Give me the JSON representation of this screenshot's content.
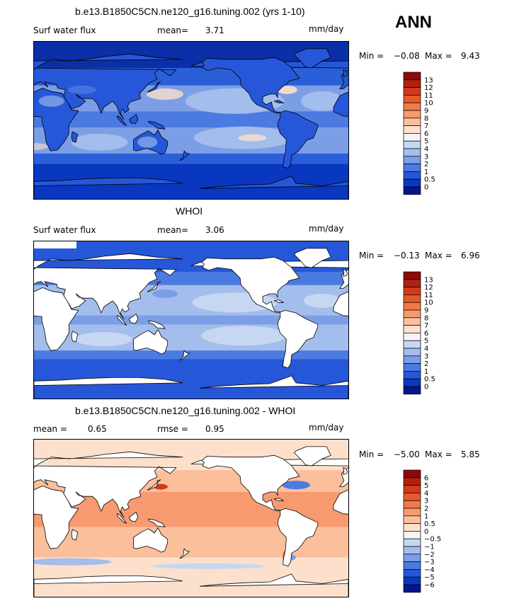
{
  "season": "ANN",
  "panels": [
    {
      "title": "b.e13.B1850C5CN.ne120_g16.tuning.002 (yrs 1-10)",
      "left_label": "Surf water flux",
      "stat1_label": "mean=",
      "stat1_value": "3.71",
      "units": "mm/day",
      "min_label": "Min =",
      "min_value": "−0.08",
      "max_label": "Max =",
      "max_value": "9.43",
      "colorbar": {
        "labels": [
          "13",
          "12",
          "11",
          "10",
          "9",
          "8",
          "7",
          "6",
          "5",
          "4",
          "3",
          "2",
          "1",
          "0.5",
          "0"
        ],
        "colors": [
          "#8c0a0a",
          "#b3200f",
          "#d23a1a",
          "#e65a2a",
          "#f27a48",
          "#f89a70",
          "#fbbf9c",
          "#fde0cc",
          "#f5f5f5",
          "#c6d7f2",
          "#a3bdec",
          "#7b9ee6",
          "#4b7ae0",
          "#2657d8",
          "#0a37c0",
          "#05158a"
        ]
      },
      "mode": "model"
    },
    {
      "title": "WHOI",
      "left_label": "Surf water flux",
      "stat1_label": "mean=",
      "stat1_value": "3.06",
      "units": "mm/day",
      "min_label": "Min =",
      "min_value": "−0.13",
      "max_label": "Max =",
      "max_value": "6.96",
      "colorbar": {
        "labels": [
          "13",
          "12",
          "11",
          "10",
          "9",
          "8",
          "7",
          "6",
          "5",
          "4",
          "3",
          "2",
          "1",
          "0.5",
          "0"
        ],
        "colors": [
          "#8c0a0a",
          "#b3200f",
          "#d23a1a",
          "#e65a2a",
          "#f27a48",
          "#f89a70",
          "#fbbf9c",
          "#fde0cc",
          "#f5f5f5",
          "#c6d7f2",
          "#a3bdec",
          "#7b9ee6",
          "#4b7ae0",
          "#2657d8",
          "#0a37c0",
          "#05158a"
        ]
      },
      "mode": "obs"
    },
    {
      "title": "b.e13.B1850C5CN.ne120_g16.tuning.002 - WHOI",
      "left_label": "mean =",
      "left_value": "0.65",
      "stat1_label": "rmse =",
      "stat1_value": "0.95",
      "units": "mm/day",
      "min_label": "Min =",
      "min_value": "−5.00",
      "max_label": "Max =",
      "max_value": "5.85",
      "colorbar": {
        "labels": [
          "6",
          "5",
          "4",
          "3",
          "2",
          "1",
          "0.5",
          "0",
          "−0.5",
          "−1",
          "−2",
          "−3",
          "−4",
          "−5",
          "−6"
        ],
        "colors": [
          "#8c0a0a",
          "#b3200f",
          "#d23a1a",
          "#e65a2a",
          "#f27a48",
          "#f89a70",
          "#fbbf9c",
          "#fde0cc",
          "#f5f5f5",
          "#c6d7f2",
          "#a3bdec",
          "#7b9ee6",
          "#4b7ae0",
          "#2657d8",
          "#0a37c0",
          "#05158a"
        ]
      },
      "mode": "diff"
    }
  ],
  "chart_data": [
    {
      "type": "heatmap",
      "title": "b.e13.B1850C5CN.ne120_g16.tuning.002 (yrs 1-10)",
      "variable": "Surf water flux",
      "units": "mm/day",
      "mean": 3.71,
      "min": -0.08,
      "max": 9.43,
      "colorbar_levels": [
        0,
        0.5,
        1,
        2,
        3,
        4,
        5,
        6,
        7,
        8,
        9,
        10,
        11,
        12,
        13
      ],
      "season": "ANN"
    },
    {
      "type": "heatmap",
      "title": "WHOI",
      "variable": "Surf water flux",
      "units": "mm/day",
      "mean": 3.06,
      "min": -0.13,
      "max": 6.96,
      "colorbar_levels": [
        0,
        0.5,
        1,
        2,
        3,
        4,
        5,
        6,
        7,
        8,
        9,
        10,
        11,
        12,
        13
      ],
      "season": "ANN"
    },
    {
      "type": "heatmap",
      "title": "b.e13.B1850C5CN.ne120_g16.tuning.002 - WHOI",
      "units": "mm/day",
      "mean": 0.65,
      "rmse": 0.95,
      "min": -5.0,
      "max": 5.85,
      "colorbar_levels": [
        -6,
        -5,
        -4,
        -3,
        -2,
        -1,
        -0.5,
        0,
        0.5,
        1,
        2,
        3,
        4,
        5,
        6
      ],
      "season": "ANN"
    }
  ]
}
